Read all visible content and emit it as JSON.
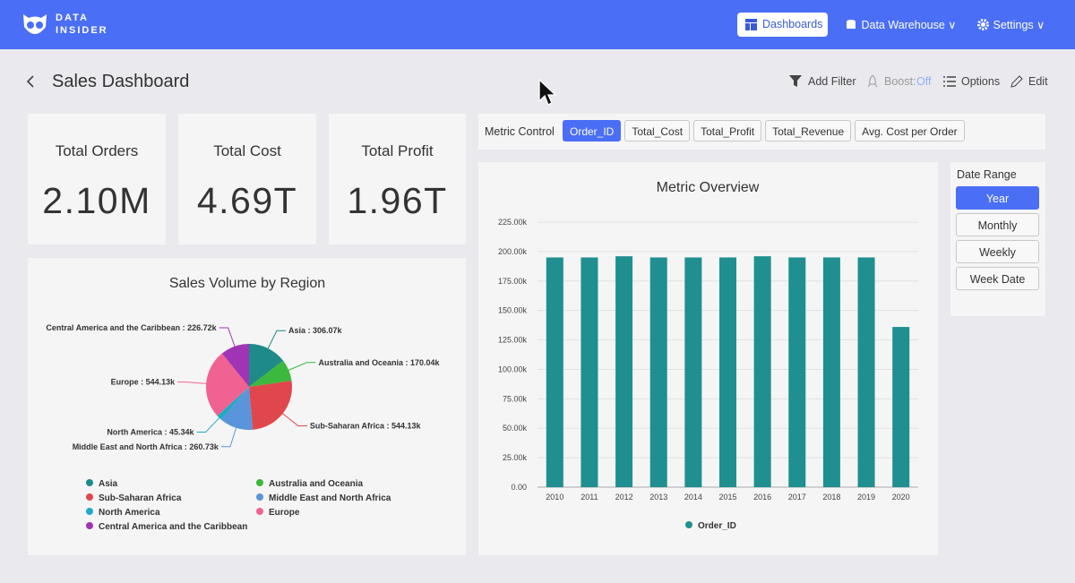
{
  "header": {
    "brand_top": "DATA",
    "brand_bottom": "INSIDER",
    "nav": [
      "Dashboards",
      "Data Warehouse",
      "Settings"
    ]
  },
  "toolbar": {
    "title": "Sales Dashboard",
    "add_filter": "Add Filter",
    "boost_label": "Boost:",
    "boost_state": "Off",
    "options": "Options",
    "edit": "Edit"
  },
  "kpis": [
    {
      "label": "Total Orders",
      "value": "2.10M"
    },
    {
      "label": "Total Cost",
      "value": "4.69T"
    },
    {
      "label": "Total Profit",
      "value": "1.96T"
    }
  ],
  "metric_control": {
    "label": "Metric Control",
    "options": [
      "Order_ID",
      "Total_Cost",
      "Total_Profit",
      "Total_Revenue",
      "Avg. Cost per Order"
    ],
    "selected": 0
  },
  "date_range": {
    "label": "Date Range",
    "options": [
      "Year",
      "Monthly",
      "Weekly",
      "Week Date"
    ],
    "selected": 0
  },
  "chart_data": [
    {
      "type": "pie",
      "title": "Sales Volume by Region",
      "label_separator": " : ",
      "categories": [
        "Asia",
        "Australia and Oceania",
        "Sub-Saharan Africa",
        "Middle East and North Africa",
        "North America",
        "Europe",
        "Central America and the Caribbean"
      ],
      "values": [
        306070,
        170040,
        544130,
        260730,
        45340,
        544130,
        226720
      ],
      "value_labels": [
        "306.07k",
        "170.04k",
        "544.13k",
        "260.73k",
        "45.34k",
        "544.13k",
        "226.72k"
      ],
      "colors": [
        "#1f8a8a",
        "#3cb83c",
        "#e0474c",
        "#5a94db",
        "#22aac4",
        "#f06292",
        "#a034b4"
      ]
    },
    {
      "type": "bar",
      "title": "Metric Overview",
      "categories": [
        "2010",
        "2011",
        "2012",
        "2013",
        "2014",
        "2015",
        "2016",
        "2017",
        "2018",
        "2019",
        "2020"
      ],
      "series": [
        {
          "name": "Order_ID",
          "color": "#1f8f8f",
          "values": [
            195000,
            195000,
            196000,
            195000,
            195000,
            195000,
            196000,
            195000,
            195000,
            195000,
            136000
          ]
        }
      ],
      "ylim": [
        0,
        225000
      ],
      "yticks": [
        {
          "value": 0,
          "label": "0.00"
        },
        {
          "value": 25000,
          "label": "25.00k"
        },
        {
          "value": 50000,
          "label": "50.00k"
        },
        {
          "value": 75000,
          "label": "75.00k"
        },
        {
          "value": 100000,
          "label": "100.00k"
        },
        {
          "value": 125000,
          "label": "125.00k"
        },
        {
          "value": 150000,
          "label": "150.00k"
        },
        {
          "value": 175000,
          "label": "175.00k"
        },
        {
          "value": 200000,
          "label": "200.00k"
        },
        {
          "value": 225000,
          "label": "225.00k"
        }
      ],
      "grid": true
    }
  ]
}
